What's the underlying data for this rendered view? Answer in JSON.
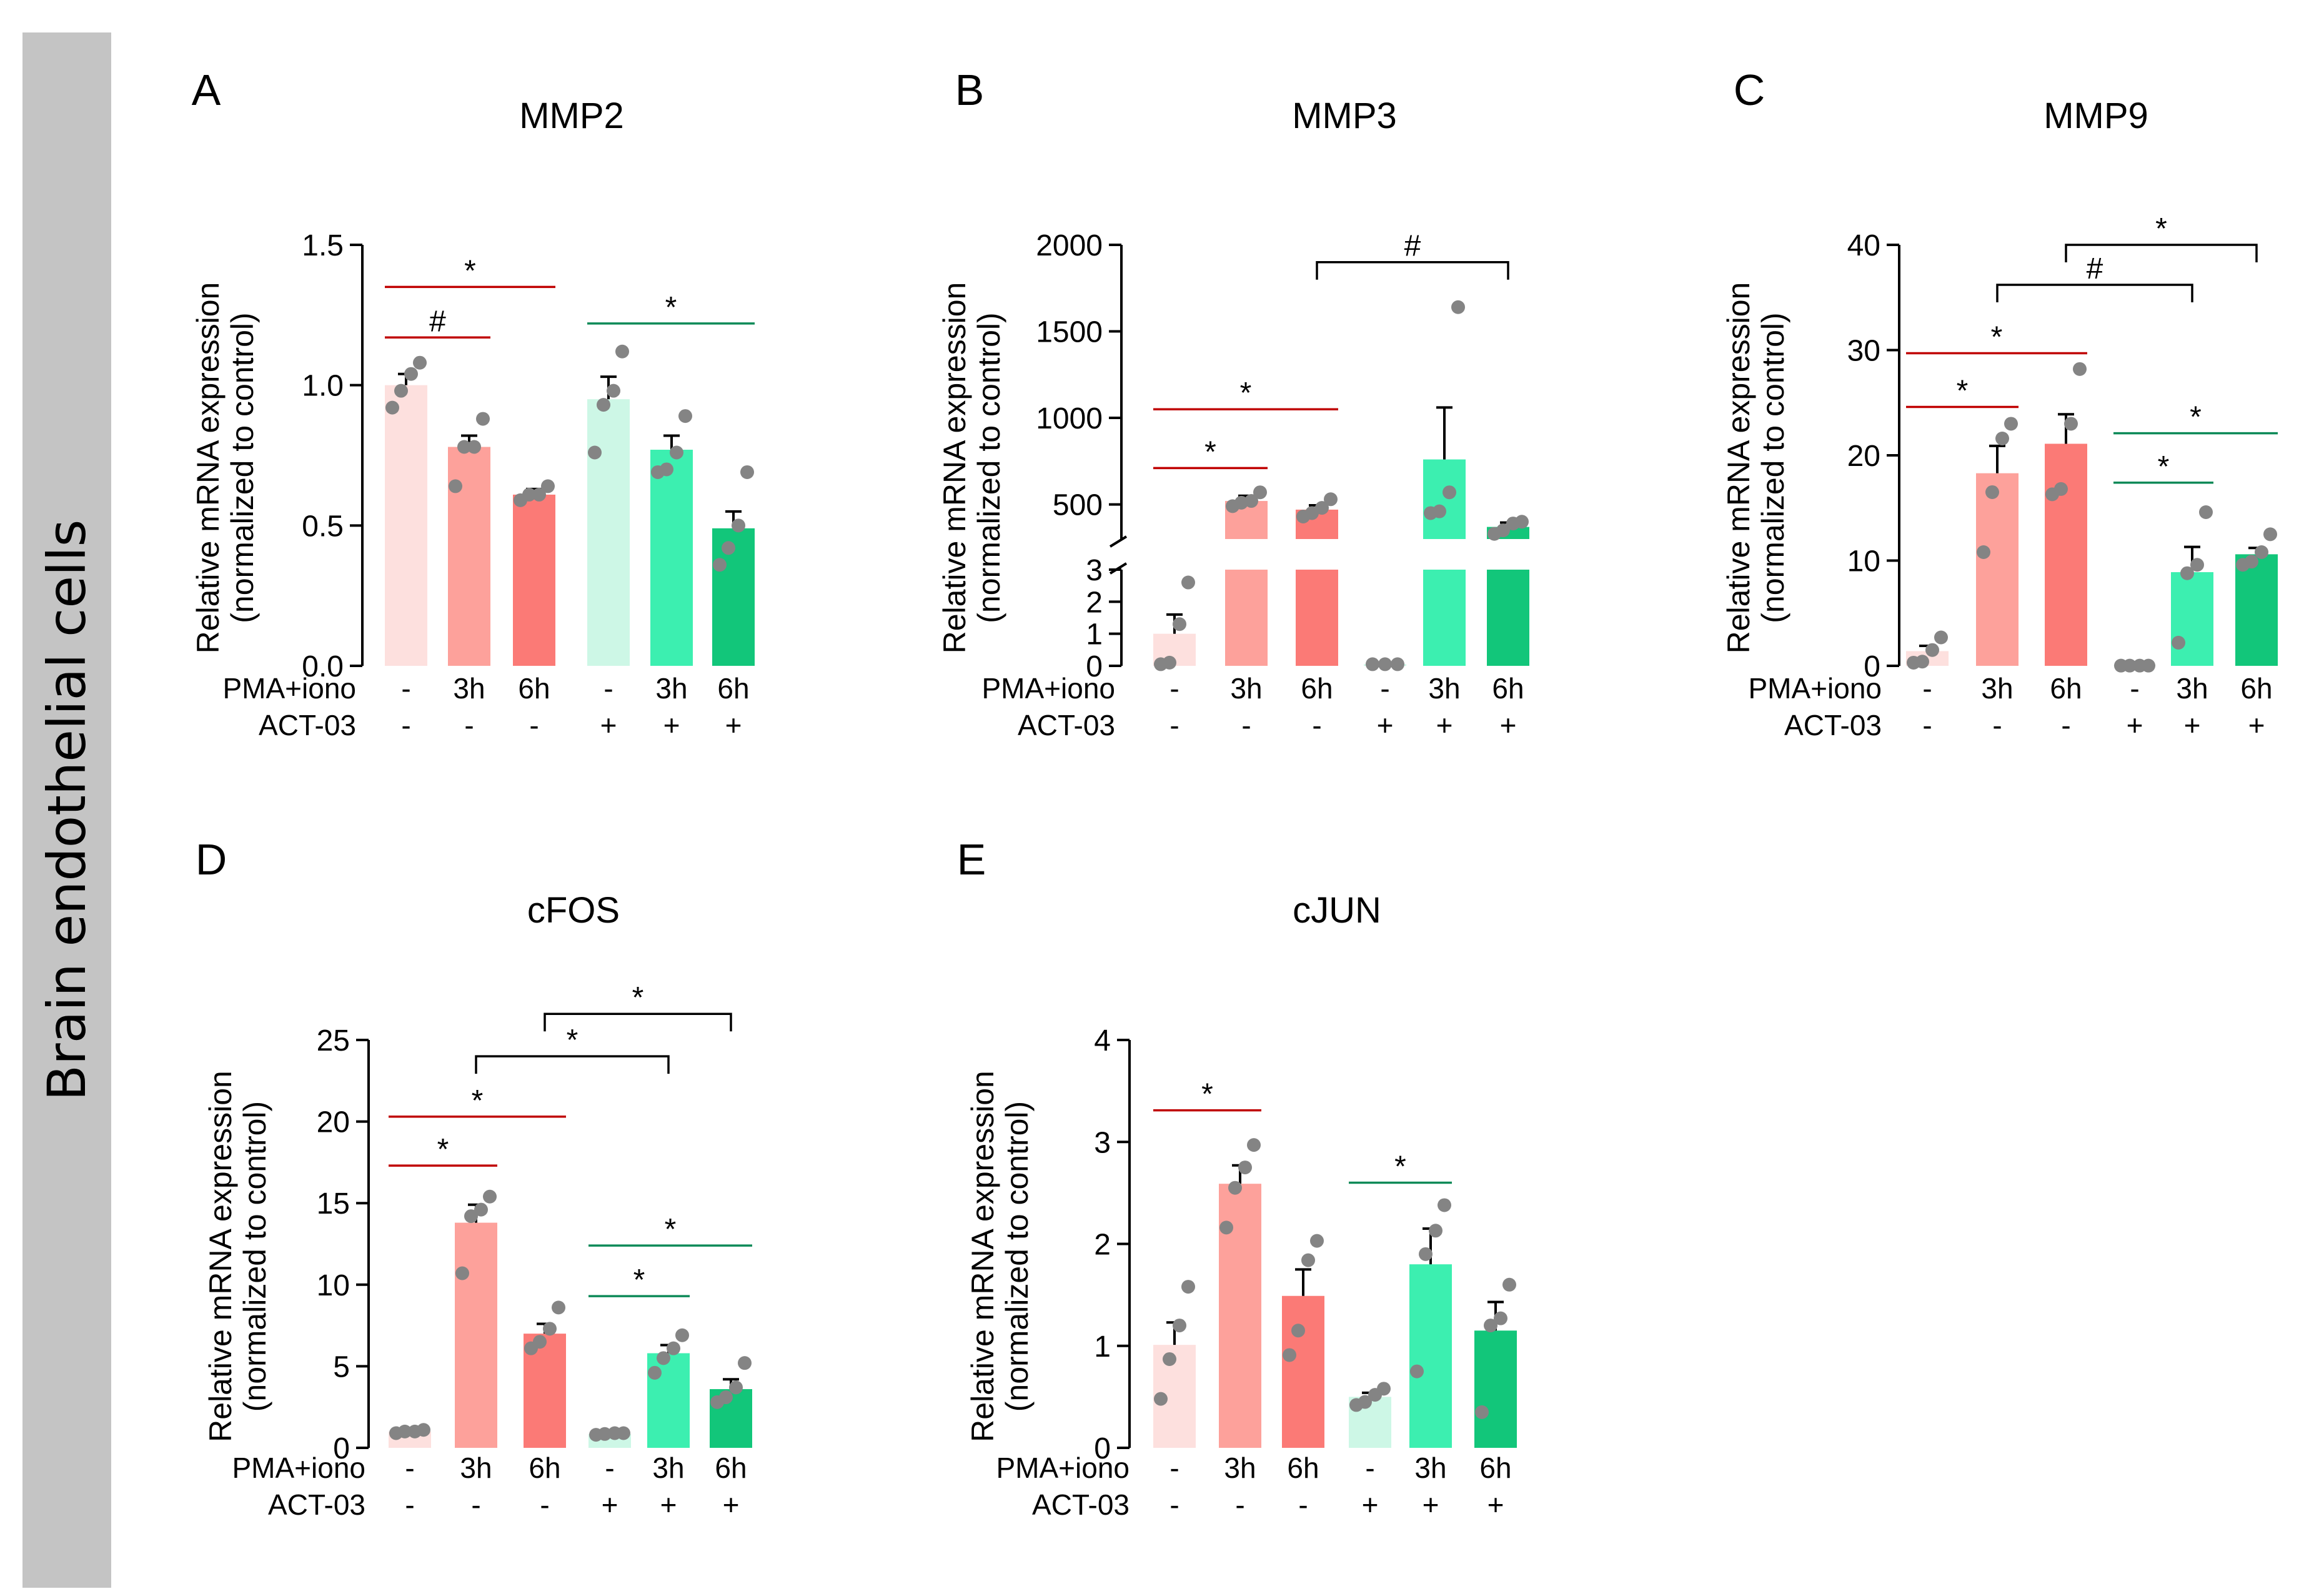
{
  "figure": {
    "side_label": "Brain endothelial cells"
  },
  "styles": {
    "bar_colors": [
      "#fde0de",
      "#fda19b",
      "#fb7a76",
      "#cdf7e6",
      "#3cefb0",
      "#12c67a"
    ],
    "dot_color": "#848484",
    "sig_red": "#c00000",
    "sig_green": "#0d8a58",
    "sig_black": "#000000"
  },
  "chart_data": [
    {
      "panel": "A",
      "title": "MMP2",
      "type": "bar",
      "ylabel": [
        "Relative mRNA expression",
        "(normalized to control)"
      ],
      "ylim": [
        0,
        1.5
      ],
      "yticks": [
        "0.0",
        "0.5",
        "1.0",
        "1.5"
      ],
      "row_labels": [
        "PMA+iono",
        "ACT-03"
      ],
      "categories": [
        {
          "pma": "-",
          "act": "-",
          "mean": 1.0,
          "sem": 0.04,
          "points": [
            0.92,
            0.98,
            1.04,
            1.08
          ]
        },
        {
          "pma": "3h",
          "act": "-",
          "mean": 0.78,
          "sem": 0.04,
          "points": [
            0.64,
            0.78,
            0.78,
            0.88
          ]
        },
        {
          "pma": "6h",
          "act": "-",
          "mean": 0.61,
          "sem": 0.02,
          "points": [
            0.59,
            0.61,
            0.61,
            0.64
          ]
        },
        {
          "pma": "-",
          "act": "+",
          "mean": 0.95,
          "sem": 0.08,
          "points": [
            0.76,
            0.93,
            0.98,
            1.12
          ]
        },
        {
          "pma": "3h",
          "act": "+",
          "mean": 0.77,
          "sem": 0.05,
          "points": [
            0.69,
            0.7,
            0.76,
            0.89
          ]
        },
        {
          "pma": "6h",
          "act": "+",
          "mean": 0.49,
          "sem": 0.06,
          "points": [
            0.36,
            0.42,
            0.5,
            0.69
          ]
        }
      ],
      "significance": [
        {
          "from": 0,
          "to": 1,
          "label": "#",
          "style": "line",
          "color": "red",
          "y": 1.17
        },
        {
          "from": 0,
          "to": 2,
          "label": "*",
          "style": "line",
          "color": "red",
          "y": 1.35
        },
        {
          "from": 3,
          "to": 5,
          "label": "*",
          "style": "line",
          "color": "green",
          "y": 1.22
        }
      ]
    },
    {
      "panel": "B",
      "title": "MMP3",
      "type": "bar",
      "ylabel": [
        "Relative mRNA expression",
        "(normalized to control)"
      ],
      "broken_axis": true,
      "ylim": [
        0,
        2000
      ],
      "ylim_low": [
        0,
        3
      ],
      "ylim_high": [
        300,
        2000
      ],
      "yticks_high": [
        "500",
        "1000",
        "1500",
        "2000"
      ],
      "yticks_low": [
        "0",
        "1",
        "2",
        "3"
      ],
      "row_labels": [
        "PMA+iono",
        "ACT-03"
      ],
      "categories": [
        {
          "pma": "-",
          "act": "-",
          "mean": 1.0,
          "sem": 0.6,
          "points": [
            0.05,
            0.1,
            1.3,
            2.6
          ]
        },
        {
          "pma": "3h",
          "act": "-",
          "mean": 520,
          "sem": 30,
          "points": [
            490,
            510,
            520,
            570
          ]
        },
        {
          "pma": "6h",
          "act": "-",
          "mean": 470,
          "sem": 25,
          "points": [
            430,
            450,
            480,
            530
          ]
        },
        {
          "pma": "-",
          "act": "+",
          "mean": 0.05,
          "sem": 0,
          "points": [
            0.05,
            0.05,
            0.05
          ]
        },
        {
          "pma": "3h",
          "act": "+",
          "mean": 760,
          "sem": 300,
          "points": [
            450,
            460,
            570,
            1640
          ]
        },
        {
          "pma": "6h",
          "act": "+",
          "mean": 370,
          "sem": 25,
          "points": [
            330,
            350,
            390,
            400
          ]
        }
      ],
      "significance": [
        {
          "from": 0,
          "to": 1,
          "label": "*",
          "style": "line",
          "color": "red",
          "y": 710
        },
        {
          "from": 0,
          "to": 2,
          "label": "*",
          "style": "line",
          "color": "red",
          "y": 1050
        },
        {
          "from": 2,
          "to": 5,
          "label": "#",
          "style": "bracket",
          "color": "black",
          "y": 1900
        }
      ]
    },
    {
      "panel": "C",
      "title": "MMP9",
      "type": "bar",
      "ylabel": [
        "Relative mRNA expression",
        "(normalized to control)"
      ],
      "ylim": [
        0,
        40
      ],
      "yticks": [
        "0",
        "10",
        "20",
        "30",
        "40"
      ],
      "row_labels": [
        "PMA+iono",
        "ACT-03"
      ],
      "categories": [
        {
          "pma": "-",
          "act": "-",
          "mean": 1.4,
          "sem": 0.5,
          "points": [
            0.3,
            0.4,
            1.5,
            2.7
          ]
        },
        {
          "pma": "3h",
          "act": "-",
          "mean": 18.3,
          "sem": 2.6,
          "points": [
            10.8,
            16.5,
            21.6,
            23.0
          ]
        },
        {
          "pma": "6h",
          "act": "-",
          "mean": 21.1,
          "sem": 2.8,
          "points": [
            16.3,
            16.8,
            23.0,
            28.2
          ]
        },
        {
          "pma": "-",
          "act": "+",
          "mean": 0.02,
          "sem": 0,
          "points": [
            0.02,
            0.02,
            0.02,
            0.02
          ]
        },
        {
          "pma": "3h",
          "act": "+",
          "mean": 8.9,
          "sem": 2.4,
          "points": [
            2.2,
            8.8,
            9.6,
            14.6
          ]
        },
        {
          "pma": "6h",
          "act": "+",
          "mean": 10.6,
          "sem": 0.6,
          "points": [
            9.6,
            9.9,
            10.8,
            12.5
          ]
        }
      ],
      "significance": [
        {
          "from": 0,
          "to": 1,
          "label": "*",
          "style": "line",
          "color": "red",
          "y": 24.6
        },
        {
          "from": 0,
          "to": 2,
          "label": "*",
          "style": "line",
          "color": "red",
          "y": 29.7
        },
        {
          "from": 3,
          "to": 4,
          "label": "*",
          "style": "line",
          "color": "green",
          "y": 17.4
        },
        {
          "from": 3,
          "to": 5,
          "label": "*",
          "style": "line",
          "color": "green",
          "y": 22.1
        },
        {
          "from": 1,
          "to": 4,
          "label": "#",
          "style": "bracket",
          "color": "black",
          "y": 36.2
        },
        {
          "from": 2,
          "to": 5,
          "label": "*",
          "style": "bracket",
          "color": "black",
          "y": 40.0
        }
      ]
    },
    {
      "panel": "D",
      "title": "cFOS",
      "type": "bar",
      "ylabel": [
        "Relative mRNA expression",
        "(normalized to control)"
      ],
      "ylim": [
        0,
        25
      ],
      "yticks": [
        "0",
        "5",
        "10",
        "15",
        "20",
        "25"
      ],
      "row_labels": [
        "PMA+iono",
        "ACT-03"
      ],
      "categories": [
        {
          "pma": "-",
          "act": "-",
          "mean": 1.0,
          "sem": 0.05,
          "points": [
            0.9,
            1.0,
            1.0,
            1.1
          ]
        },
        {
          "pma": "3h",
          "act": "-",
          "mean": 13.8,
          "sem": 1.1,
          "points": [
            10.7,
            14.2,
            14.6,
            15.4
          ]
        },
        {
          "pma": "6h",
          "act": "-",
          "mean": 7.0,
          "sem": 0.6,
          "points": [
            6.1,
            6.5,
            7.3,
            8.6
          ]
        },
        {
          "pma": "-",
          "act": "+",
          "mean": 0.85,
          "sem": 0.05,
          "points": [
            0.8,
            0.85,
            0.9,
            0.9
          ]
        },
        {
          "pma": "3h",
          "act": "+",
          "mean": 5.8,
          "sem": 0.5,
          "points": [
            4.6,
            5.5,
            6.1,
            6.9
          ]
        },
        {
          "pma": "6h",
          "act": "+",
          "mean": 3.6,
          "sem": 0.6,
          "points": [
            2.8,
            3.1,
            3.7,
            5.2
          ]
        }
      ],
      "significance": [
        {
          "from": 0,
          "to": 1,
          "label": "*",
          "style": "line",
          "color": "red",
          "y": 17.3
        },
        {
          "from": 0,
          "to": 2,
          "label": "*",
          "style": "line",
          "color": "red",
          "y": 20.3
        },
        {
          "from": 3,
          "to": 4,
          "label": "*",
          "style": "line",
          "color": "green",
          "y": 9.3
        },
        {
          "from": 3,
          "to": 5,
          "label": "*",
          "style": "line",
          "color": "green",
          "y": 12.4
        },
        {
          "from": 1,
          "to": 4,
          "label": "*",
          "style": "bracket",
          "color": "black",
          "y": 24.0
        },
        {
          "from": 2,
          "to": 5,
          "label": "*",
          "style": "bracket",
          "color": "black",
          "y": 26.6
        }
      ]
    },
    {
      "panel": "E",
      "title": "cJUN",
      "type": "bar",
      "ylabel": [
        "Relative mRNA expression",
        "(normalized to control)"
      ],
      "ylim": [
        0,
        4
      ],
      "yticks": [
        "0",
        "1",
        "2",
        "3",
        "4"
      ],
      "row_labels": [
        "PMA+iono",
        "ACT-03"
      ],
      "categories": [
        {
          "pma": "-",
          "act": "-",
          "mean": 1.01,
          "sem": 0.22,
          "points": [
            0.48,
            0.87,
            1.2,
            1.58
          ]
        },
        {
          "pma": "3h",
          "act": "-",
          "mean": 2.59,
          "sem": 0.18,
          "points": [
            2.16,
            2.55,
            2.75,
            2.97
          ]
        },
        {
          "pma": "6h",
          "act": "-",
          "mean": 1.49,
          "sem": 0.26,
          "points": [
            0.91,
            1.15,
            1.84,
            2.03
          ]
        },
        {
          "pma": "-",
          "act": "+",
          "mean": 0.5,
          "sem": 0.04,
          "points": [
            0.42,
            0.45,
            0.52,
            0.58
          ]
        },
        {
          "pma": "3h",
          "act": "+",
          "mean": 1.8,
          "sem": 0.35,
          "points": [
            0.75,
            1.9,
            2.13,
            2.38
          ]
        },
        {
          "pma": "6h",
          "act": "+",
          "mean": 1.15,
          "sem": 0.28,
          "points": [
            0.35,
            1.2,
            1.27,
            1.6
          ]
        }
      ],
      "significance": [
        {
          "from": 0,
          "to": 1,
          "label": "*",
          "style": "line",
          "color": "red",
          "y": 3.31
        },
        {
          "from": 3,
          "to": 4,
          "label": "*",
          "style": "line",
          "color": "green",
          "y": 2.6
        }
      ]
    }
  ]
}
